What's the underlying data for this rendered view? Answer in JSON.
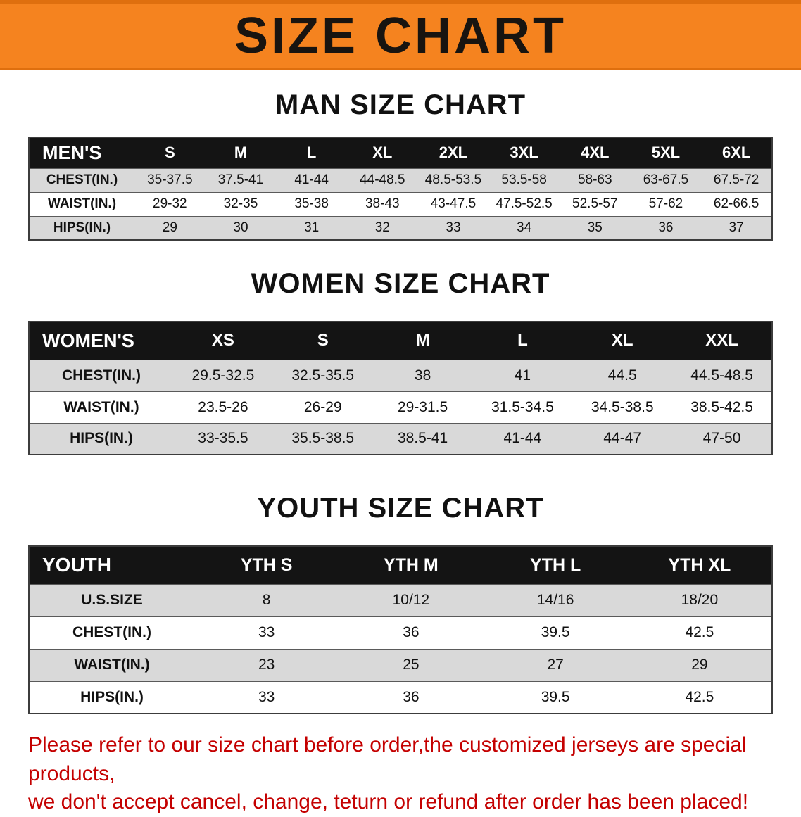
{
  "banner": {
    "title": "SIZE CHART"
  },
  "colors": {
    "banner_orange": "#f5831f",
    "banner_edge_orange": "#df6f0e",
    "table_header_black": "#141414",
    "row_stripe_gray": "#d9d9d9",
    "notice_red": "#c40000"
  },
  "sections": [
    {
      "heading": "MAN SIZE CHART",
      "table": {
        "corner": "MEN'S",
        "columns": [
          "S",
          "M",
          "L",
          "XL",
          "2XL",
          "3XL",
          "4XL",
          "5XL",
          "6XL"
        ],
        "rows": [
          {
            "label": "CHEST(IN.)",
            "values": [
              "35-37.5",
              "37.5-41",
              "41-44",
              "44-48.5",
              "48.5-53.5",
              "53.5-58",
              "58-63",
              "63-67.5",
              "67.5-72"
            ]
          },
          {
            "label": "WAIST(IN.)",
            "values": [
              "29-32",
              "32-35",
              "35-38",
              "38-43",
              "43-47.5",
              "47.5-52.5",
              "52.5-57",
              "57-62",
              "62-66.5"
            ]
          },
          {
            "label": "HIPS(IN.)",
            "values": [
              "29",
              "30",
              "31",
              "32",
              "33",
              "34",
              "35",
              "36",
              "37"
            ]
          }
        ]
      }
    },
    {
      "heading": "WOMEN SIZE CHART",
      "table": {
        "corner": "WOMEN'S",
        "columns": [
          "XS",
          "S",
          "M",
          "L",
          "XL",
          "XXL"
        ],
        "rows": [
          {
            "label": "CHEST(IN.)",
            "values": [
              "29.5-32.5",
              "32.5-35.5",
              "38",
              "41",
              "44.5",
              "44.5-48.5"
            ]
          },
          {
            "label": "WAIST(IN.)",
            "values": [
              "23.5-26",
              "26-29",
              "29-31.5",
              "31.5-34.5",
              "34.5-38.5",
              "38.5-42.5"
            ]
          },
          {
            "label": "HIPS(IN.)",
            "values": [
              "33-35.5",
              "35.5-38.5",
              "38.5-41",
              "41-44",
              "44-47",
              "47-50"
            ]
          }
        ]
      }
    },
    {
      "heading": "YOUTH SIZE CHART",
      "table": {
        "corner": "YOUTH",
        "columns": [
          "YTH S",
          "YTH M",
          "YTH L",
          "YTH XL"
        ],
        "rows": [
          {
            "label": "U.S.SIZE",
            "values": [
              "8",
              "10/12",
              "14/16",
              "18/20"
            ]
          },
          {
            "label": "CHEST(IN.)",
            "values": [
              "33",
              "36",
              "39.5",
              "42.5"
            ]
          },
          {
            "label": "WAIST(IN.)",
            "values": [
              "23",
              "25",
              "27",
              "29"
            ]
          },
          {
            "label": "HIPS(IN.)",
            "values": [
              "33",
              "36",
              "39.5",
              "42.5"
            ]
          }
        ]
      }
    }
  ],
  "footer": {
    "line1": "Please refer to our size chart before order,the customized jerseys are special products,",
    "line2": "we don't accept cancel, change, teturn or refund after order has been placed!"
  }
}
